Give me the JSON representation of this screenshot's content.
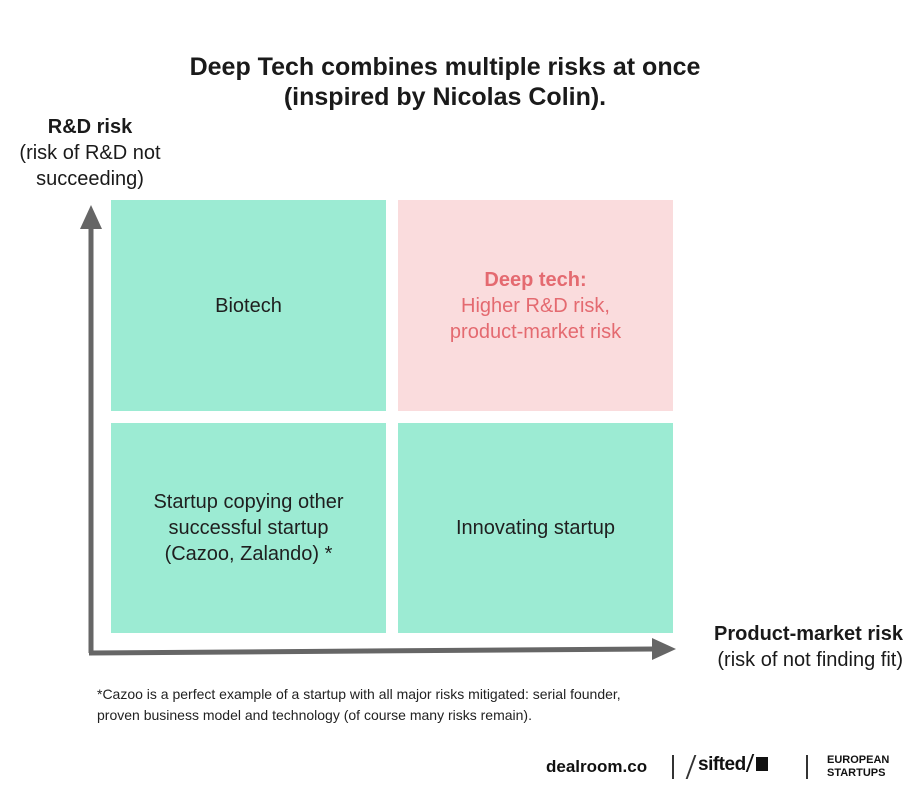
{
  "title": {
    "line1": "Deep Tech combines multiple risks at once",
    "line2": "(inspired by Nicolas Colin)."
  },
  "y_axis": {
    "label": "R&D risk",
    "sub1": "(risk of R&D not",
    "sub2": "succeeding)"
  },
  "x_axis": {
    "label": "Product-market risk",
    "sub": "(risk of not finding fit)"
  },
  "quadrants": {
    "top_left": {
      "label": "Biotech"
    },
    "top_right": {
      "heading": "Deep tech:",
      "line1": "Higher R&D risk,",
      "line2": "product-market risk"
    },
    "bottom_left": {
      "line1": "Startup copying other",
      "line2": "successful startup",
      "line3": "(Cazoo, Zalando) *"
    },
    "bottom_right": {
      "label": "Innovating startup"
    }
  },
  "footnote": {
    "line1": "*Cazoo is a perfect example of a startup with all major risks mitigated: serial founder,",
    "line2": "proven business model and technology (of course many risks remain)."
  },
  "logos": {
    "dealroom": "dealroom.co",
    "sifted": "sifted",
    "eu_line1": "EUROPEAN",
    "eu_line2": "STARTUPS"
  },
  "colors": {
    "quadrant_green": "#9cebd3",
    "quadrant_pink": "#fadcdd",
    "deep_tech_text": "#e46a70",
    "axis": "#666666"
  },
  "icons": {
    "y_arrow": "arrow-up-icon",
    "x_arrow": "arrow-right-icon"
  }
}
